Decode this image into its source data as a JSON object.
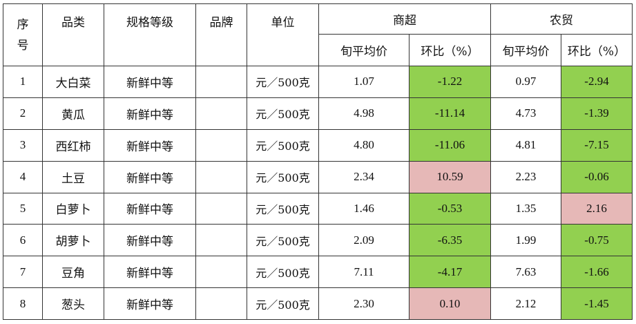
{
  "header": {
    "seq": "序号",
    "category": "品类",
    "spec": "规格等级",
    "brand": "品牌",
    "unit": "单位",
    "supermarket": "商超",
    "market": "农贸",
    "avg_price": "旬平均价",
    "change": "环比（%）"
  },
  "colors": {
    "decrease": "#92d050",
    "increase": "#e6b8b7"
  },
  "rows": [
    {
      "seq": "1",
      "name": "大白菜",
      "spec": "新鲜中等",
      "brand": "",
      "unit": "元／500克",
      "sm_price": "1.07",
      "sm_change": "-1.22",
      "mk_price": "0.97",
      "mk_change": "-2.94"
    },
    {
      "seq": "2",
      "name": "黄瓜",
      "spec": "新鲜中等",
      "brand": "",
      "unit": "元／500克",
      "sm_price": "4.98",
      "sm_change": "-11.14",
      "mk_price": "4.73",
      "mk_change": "-1.39"
    },
    {
      "seq": "3",
      "name": "西红柿",
      "spec": "新鲜中等",
      "brand": "",
      "unit": "元／500克",
      "sm_price": "4.80",
      "sm_change": "-11.06",
      "mk_price": "4.81",
      "mk_change": "-7.15"
    },
    {
      "seq": "4",
      "name": "土豆",
      "spec": "新鲜中等",
      "brand": "",
      "unit": "元／500克",
      "sm_price": "2.34",
      "sm_change": "10.59",
      "mk_price": "2.23",
      "mk_change": "-0.06"
    },
    {
      "seq": "5",
      "name": "白萝卜",
      "spec": "新鲜中等",
      "brand": "",
      "unit": "元／500克",
      "sm_price": "1.46",
      "sm_change": "-0.53",
      "mk_price": "1.35",
      "mk_change": "2.16"
    },
    {
      "seq": "6",
      "name": "胡萝卜",
      "spec": "新鲜中等",
      "brand": "",
      "unit": "元／500克",
      "sm_price": "2.09",
      "sm_change": "-6.35",
      "mk_price": "1.99",
      "mk_change": "-0.75"
    },
    {
      "seq": "7",
      "name": "豆角",
      "spec": "新鲜中等",
      "brand": "",
      "unit": "元／500克",
      "sm_price": "7.11",
      "sm_change": "-4.17",
      "mk_price": "7.63",
      "mk_change": "-1.66"
    },
    {
      "seq": "8",
      "name": "葱头",
      "spec": "新鲜中等",
      "brand": "",
      "unit": "元／500克",
      "sm_price": "2.30",
      "sm_change": "0.10",
      "mk_price": "2.12",
      "mk_change": "-1.45"
    }
  ]
}
